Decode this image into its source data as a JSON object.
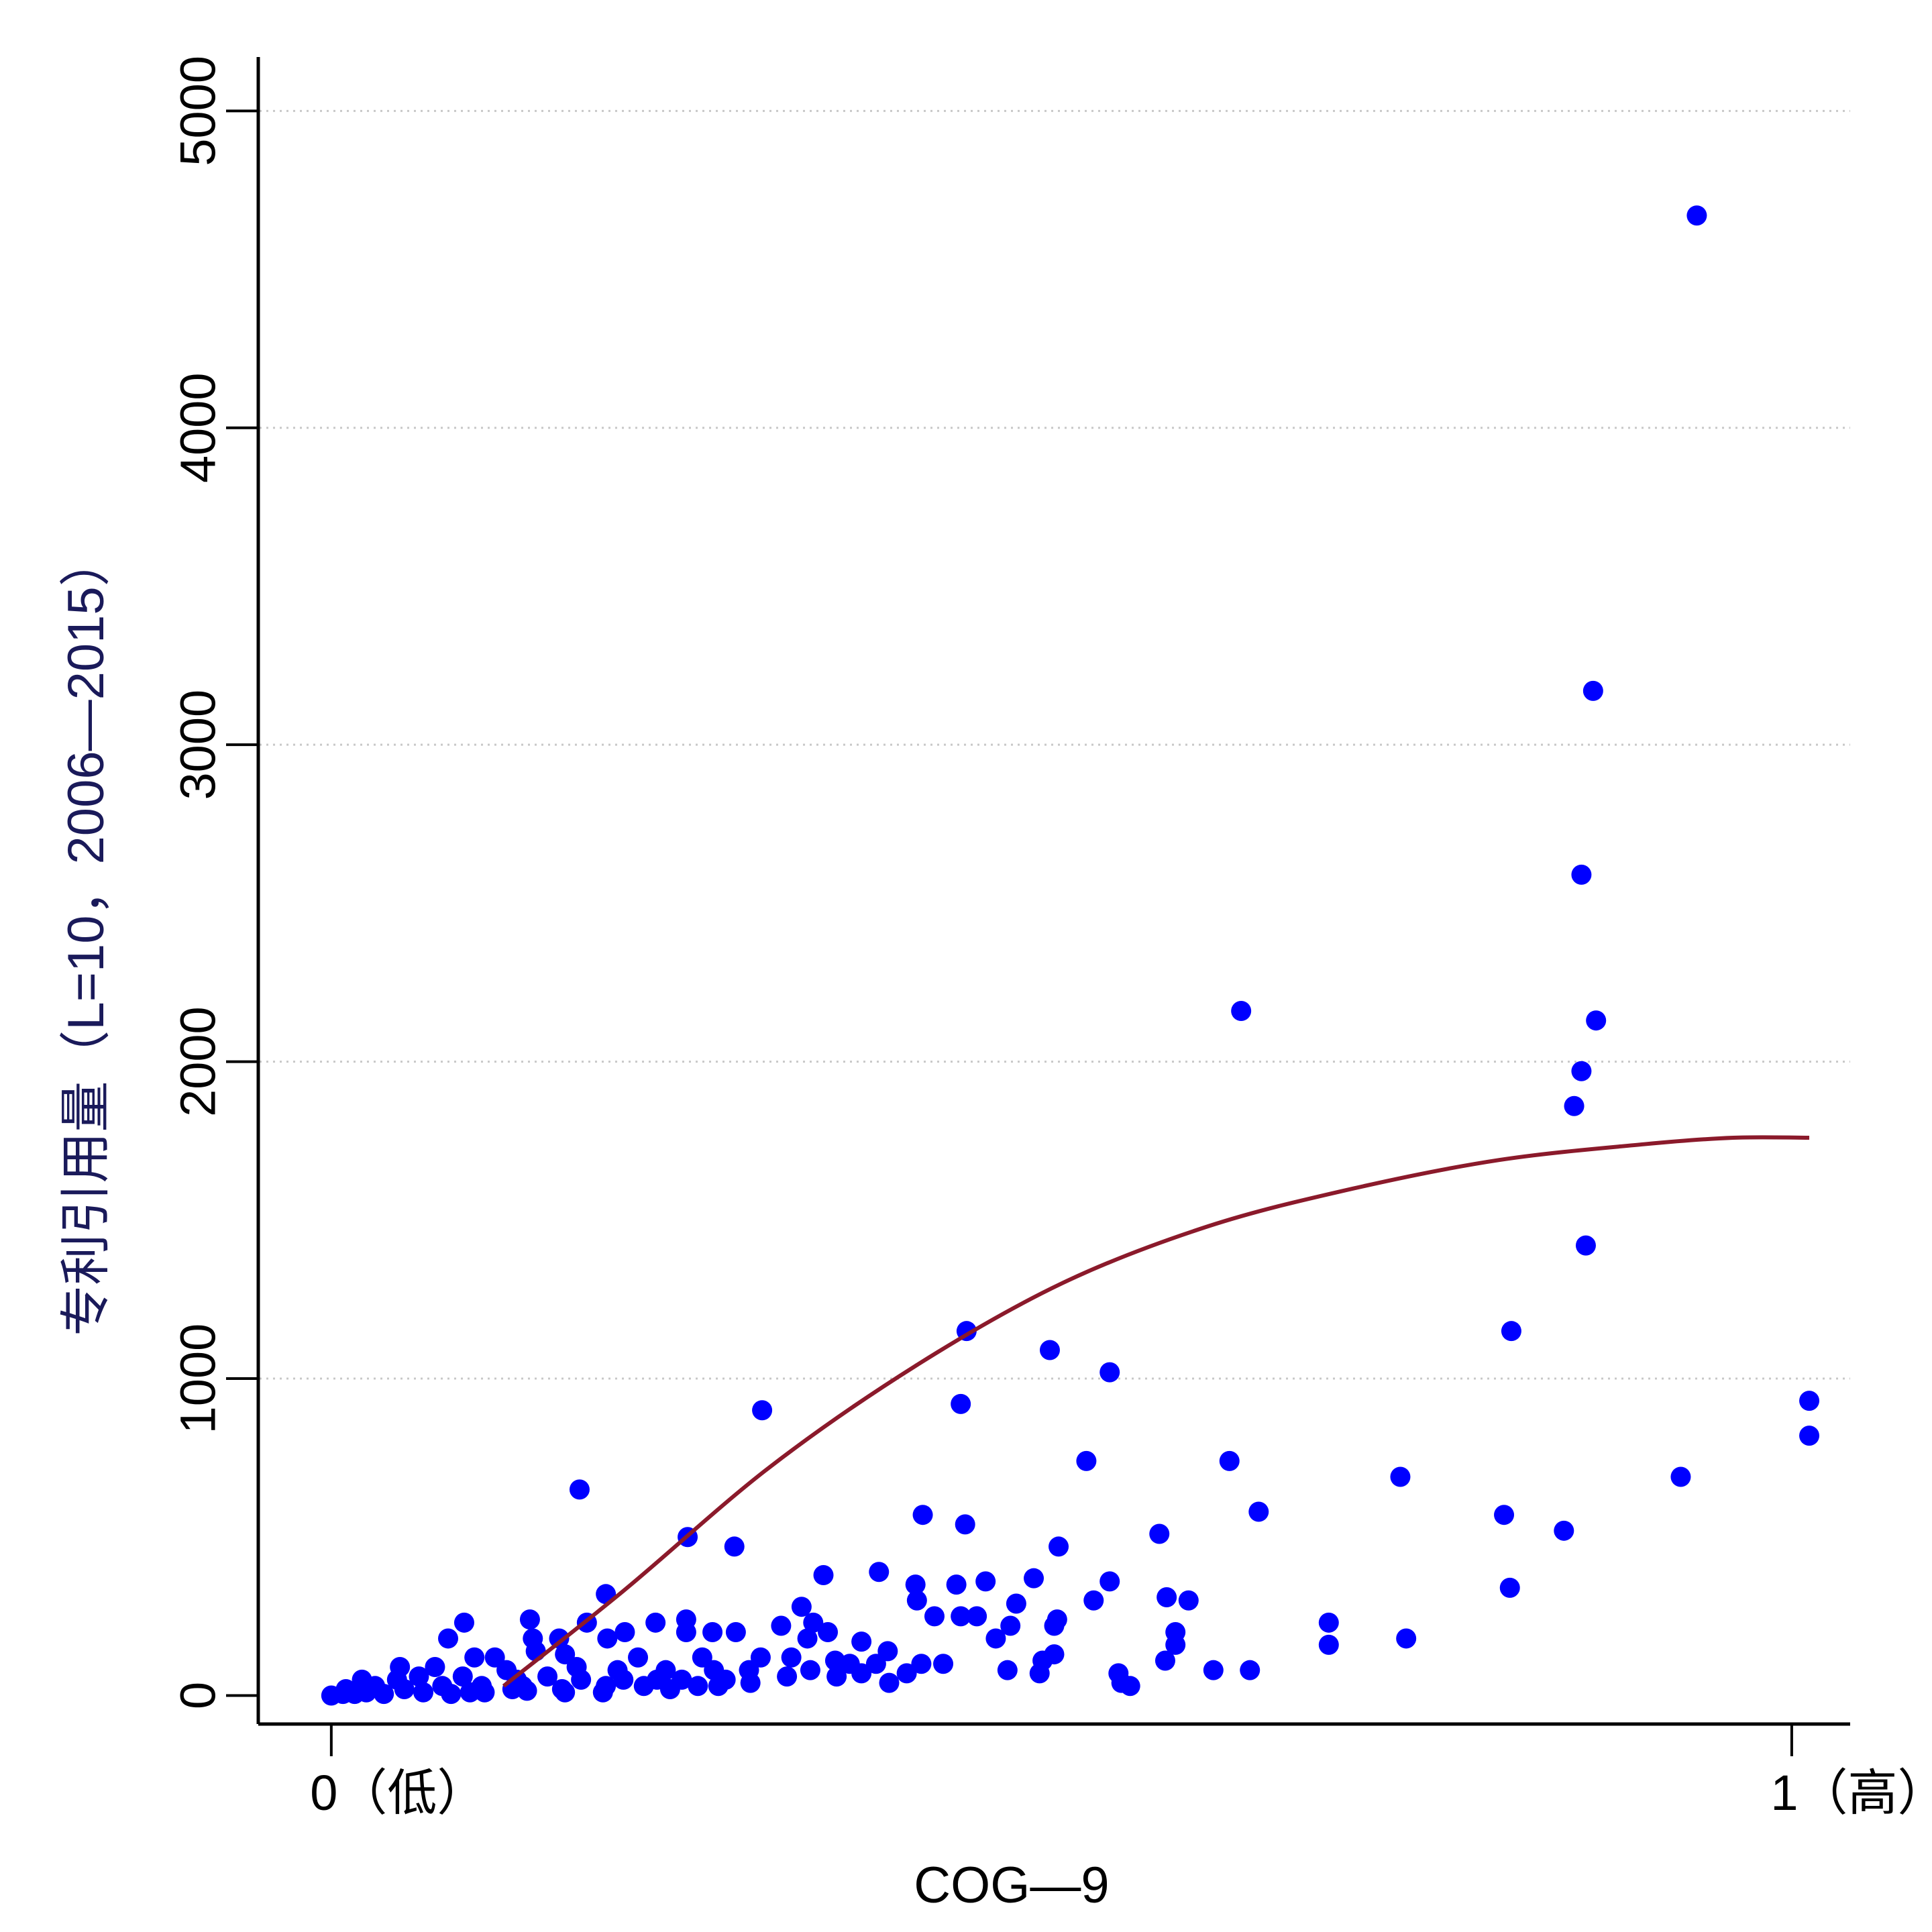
{
  "chart_data": {
    "type": "scatter",
    "title": "",
    "xlabel": "COG—9",
    "ylabel": "专利引用量（L=10，2006—2015）",
    "xlim": [
      -0.05,
      1.04
    ],
    "ylim": [
      -90,
      5170
    ],
    "x_ticks": [
      {
        "value": 0,
        "label": "0（低）"
      },
      {
        "value": 1,
        "label": "1（高）"
      }
    ],
    "y_ticks": [
      {
        "value": 0,
        "label": "0"
      },
      {
        "value": 1000,
        "label": "1000"
      },
      {
        "value": 2000,
        "label": "2000"
      },
      {
        "value": 3000,
        "label": "3000"
      },
      {
        "value": 4000,
        "label": "4000"
      },
      {
        "value": 5000,
        "label": "5000"
      }
    ],
    "grid": "horizontal dotted",
    "colors": {
      "points": "#0000ff",
      "fit_line": "#8b1a2b",
      "grid": "#c8c8c8"
    },
    "series": [
      {
        "type": "scatter",
        "points": [
          [
            0.935,
            4670
          ],
          [
            0.864,
            3170
          ],
          [
            0.856,
            2590
          ],
          [
            0.623,
            2160
          ],
          [
            0.866,
            2130
          ],
          [
            0.856,
            1970
          ],
          [
            0.851,
            1860
          ],
          [
            0.859,
            1420
          ],
          [
            0.808,
            1150
          ],
          [
            0.435,
            1150
          ],
          [
            0.492,
            1090
          ],
          [
            0.533,
            1020
          ],
          [
            1.012,
            930
          ],
          [
            0.431,
            920
          ],
          [
            0.295,
            900
          ],
          [
            1.012,
            820
          ],
          [
            0.517,
            740
          ],
          [
            0.615,
            740
          ],
          [
            0.732,
            690
          ],
          [
            0.924,
            690
          ],
          [
            0.17,
            650
          ],
          [
            0.635,
            580
          ],
          [
            0.405,
            570
          ],
          [
            0.803,
            570
          ],
          [
            0.434,
            540
          ],
          [
            0.567,
            510
          ],
          [
            0.844,
            520
          ],
          [
            0.244,
            500
          ],
          [
            0.276,
            470
          ],
          [
            0.498,
            470
          ],
          [
            0.375,
            390
          ],
          [
            0.337,
            380
          ],
          [
            0.481,
            370
          ],
          [
            0.533,
            360
          ],
          [
            0.4,
            350
          ],
          [
            0.428,
            350
          ],
          [
            0.448,
            360
          ],
          [
            0.188,
            320
          ],
          [
            0.572,
            310
          ],
          [
            0.587,
            300
          ],
          [
            0.401,
            300
          ],
          [
            0.522,
            300
          ],
          [
            0.469,
            290
          ],
          [
            0.322,
            280
          ],
          [
            0.807,
            340
          ],
          [
            0.413,
            250
          ],
          [
            0.431,
            250
          ],
          [
            0.442,
            250
          ],
          [
            0.497,
            240
          ],
          [
            0.136,
            240
          ],
          [
            0.091,
            230
          ],
          [
            0.175,
            230
          ],
          [
            0.222,
            230
          ],
          [
            0.243,
            240
          ],
          [
            0.495,
            220
          ],
          [
            0.465,
            220
          ],
          [
            0.308,
            220
          ],
          [
            0.33,
            230
          ],
          [
            0.683,
            230
          ],
          [
            0.08,
            180
          ],
          [
            0.138,
            180
          ],
          [
            0.156,
            180
          ],
          [
            0.189,
            180
          ],
          [
            0.201,
            200
          ],
          [
            0.243,
            200
          ],
          [
            0.261,
            200
          ],
          [
            0.277,
            200
          ],
          [
            0.34,
            200
          ],
          [
            0.578,
            200
          ],
          [
            0.455,
            180
          ],
          [
            0.683,
            160
          ],
          [
            0.736,
            180
          ],
          [
            0.326,
            180
          ],
          [
            0.363,
            170
          ],
          [
            0.578,
            160
          ],
          [
            0.14,
            140
          ],
          [
            0.098,
            120
          ],
          [
            0.112,
            120
          ],
          [
            0.16,
            130
          ],
          [
            0.21,
            120
          ],
          [
            0.254,
            120
          ],
          [
            0.294,
            120
          ],
          [
            0.315,
            120
          ],
          [
            0.345,
            110
          ],
          [
            0.495,
            130
          ],
          [
            0.487,
            110
          ],
          [
            0.571,
            110
          ],
          [
            0.381,
            140
          ],
          [
            0.355,
            100
          ],
          [
            0.373,
            100
          ],
          [
            0.404,
            100
          ],
          [
            0.419,
            100
          ],
          [
            0.047,
            90
          ],
          [
            0.071,
            90
          ],
          [
            0.12,
            80
          ],
          [
            0.168,
            90
          ],
          [
            0.196,
            80
          ],
          [
            0.229,
            80
          ],
          [
            0.262,
            80
          ],
          [
            0.286,
            80
          ],
          [
            0.328,
            80
          ],
          [
            0.363,
            70
          ],
          [
            0.394,
            70
          ],
          [
            0.463,
            80
          ],
          [
            0.485,
            70
          ],
          [
            0.539,
            70
          ],
          [
            0.629,
            80
          ],
          [
            0.604,
            80
          ],
          [
            0.021,
            50
          ],
          [
            0.045,
            50
          ],
          [
            0.06,
            60
          ],
          [
            0.09,
            60
          ],
          [
            0.127,
            50
          ],
          [
            0.148,
            60
          ],
          [
            0.171,
            50
          ],
          [
            0.2,
            50
          ],
          [
            0.223,
            50
          ],
          [
            0.24,
            50
          ],
          [
            0.27,
            50
          ],
          [
            0.312,
            60
          ],
          [
            0.346,
            60
          ],
          [
            0.382,
            40
          ],
          [
            0.541,
            40
          ],
          [
            0.547,
            30
          ],
          [
            0.01,
            20
          ],
          [
            0.03,
            30
          ],
          [
            0.05,
            20
          ],
          [
            0.076,
            30
          ],
          [
            0.103,
            30
          ],
          [
            0.131,
            30
          ],
          [
            0.158,
            20
          ],
          [
            0.188,
            30
          ],
          [
            0.214,
            30
          ],
          [
            0.251,
            30
          ],
          [
            0.287,
            40
          ],
          [
            0.024,
            10
          ],
          [
            0.063,
            10
          ],
          [
            0.095,
            10
          ],
          [
            0.124,
            20
          ],
          [
            0.16,
            10
          ],
          [
            0.0,
            0
          ],
          [
            0.008,
            5
          ],
          [
            0.016,
            5
          ],
          [
            0.036,
            5
          ],
          [
            0.082,
            5
          ],
          [
            0.105,
            10
          ],
          [
            0.134,
            15
          ],
          [
            0.186,
            10
          ],
          [
            0.232,
            20
          ],
          [
            0.265,
            30
          ]
        ]
      },
      {
        "type": "line",
        "fit_points": [
          [
            0.118,
            30
          ],
          [
            0.2,
            330
          ],
          [
            0.3,
            720
          ],
          [
            0.4,
            1040
          ],
          [
            0.5,
            1300
          ],
          [
            0.6,
            1480
          ],
          [
            0.7,
            1600
          ],
          [
            0.8,
            1690
          ],
          [
            0.9,
            1740
          ],
          [
            0.96,
            1760
          ],
          [
            1.012,
            1760
          ]
        ]
      }
    ]
  }
}
